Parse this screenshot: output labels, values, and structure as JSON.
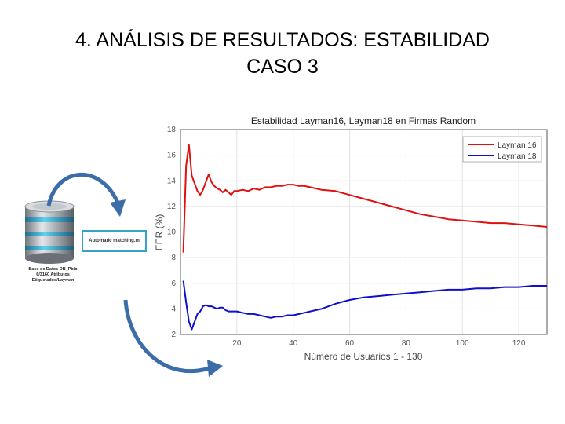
{
  "slide": {
    "title_line1": "4. ANÁLISIS DE RESULTADOS: ESTABILIDAD",
    "title_line2": "CASO 3"
  },
  "diagram": {
    "database_icon": "database-icon",
    "db_caption_line1": "Base de Datos DB_Pbio",
    "db_caption_line2": "6/3160 Atributos",
    "db_caption_line3": "Etiquetados/Layman",
    "matching_label": "Automatic matching.m",
    "arrow_color": "#3b6ea8"
  },
  "chart_data": {
    "type": "line",
    "title": "Estabilidad Layman16, Layman18 en Firmas Random",
    "xlabel": "Número de Usuarios 1 - 130",
    "ylabel": "EER (%)",
    "xlim": [
      0,
      130
    ],
    "ylim": [
      2,
      18
    ],
    "xticks": [
      20,
      40,
      60,
      80,
      100,
      120
    ],
    "yticks": [
      2,
      4,
      6,
      8,
      10,
      12,
      14,
      16,
      18
    ],
    "grid": true,
    "legend_position": "top-right",
    "series": [
      {
        "name": "Layman 16",
        "color": "#e01010",
        "x": [
          1,
          2,
          3,
          4,
          5,
          6,
          7,
          8,
          9,
          10,
          11,
          12,
          13,
          14,
          15,
          16,
          17,
          18,
          19,
          20,
          22,
          24,
          26,
          28,
          30,
          32,
          34,
          36,
          38,
          40,
          42,
          44,
          46,
          48,
          50,
          55,
          60,
          65,
          70,
          75,
          80,
          85,
          90,
          95,
          100,
          105,
          110,
          115,
          120,
          125,
          130
        ],
        "y": [
          8.4,
          15.2,
          16.8,
          14.4,
          13.8,
          13.2,
          12.9,
          13.3,
          13.9,
          14.5,
          13.9,
          13.6,
          13.4,
          13.3,
          13.1,
          13.3,
          13.1,
          12.9,
          13.2,
          13.2,
          13.3,
          13.2,
          13.4,
          13.3,
          13.5,
          13.5,
          13.6,
          13.6,
          13.7,
          13.7,
          13.6,
          13.6,
          13.5,
          13.4,
          13.3,
          13.2,
          12.9,
          12.6,
          12.3,
          12.0,
          11.7,
          11.4,
          11.2,
          11.0,
          10.9,
          10.8,
          10.7,
          10.7,
          10.6,
          10.5,
          10.4
        ]
      },
      {
        "name": "Layman 18",
        "color": "#1010c8",
        "x": [
          1,
          2,
          3,
          4,
          5,
          6,
          7,
          8,
          9,
          10,
          11,
          12,
          13,
          14,
          15,
          16,
          17,
          18,
          19,
          20,
          22,
          24,
          26,
          28,
          30,
          32,
          34,
          36,
          38,
          40,
          42,
          44,
          46,
          48,
          50,
          55,
          60,
          65,
          70,
          75,
          80,
          85,
          90,
          95,
          100,
          105,
          110,
          115,
          120,
          125,
          130
        ],
        "y": [
          6.2,
          4.5,
          3.0,
          2.4,
          3.0,
          3.6,
          3.8,
          4.2,
          4.3,
          4.2,
          4.2,
          4.1,
          4.0,
          4.1,
          4.1,
          3.9,
          3.8,
          3.8,
          3.8,
          3.8,
          3.7,
          3.6,
          3.6,
          3.5,
          3.4,
          3.3,
          3.4,
          3.4,
          3.5,
          3.5,
          3.6,
          3.7,
          3.8,
          3.9,
          4.0,
          4.4,
          4.7,
          4.9,
          5.0,
          5.1,
          5.2,
          5.3,
          5.4,
          5.5,
          5.5,
          5.6,
          5.6,
          5.7,
          5.7,
          5.8,
          5.8
        ]
      }
    ]
  }
}
